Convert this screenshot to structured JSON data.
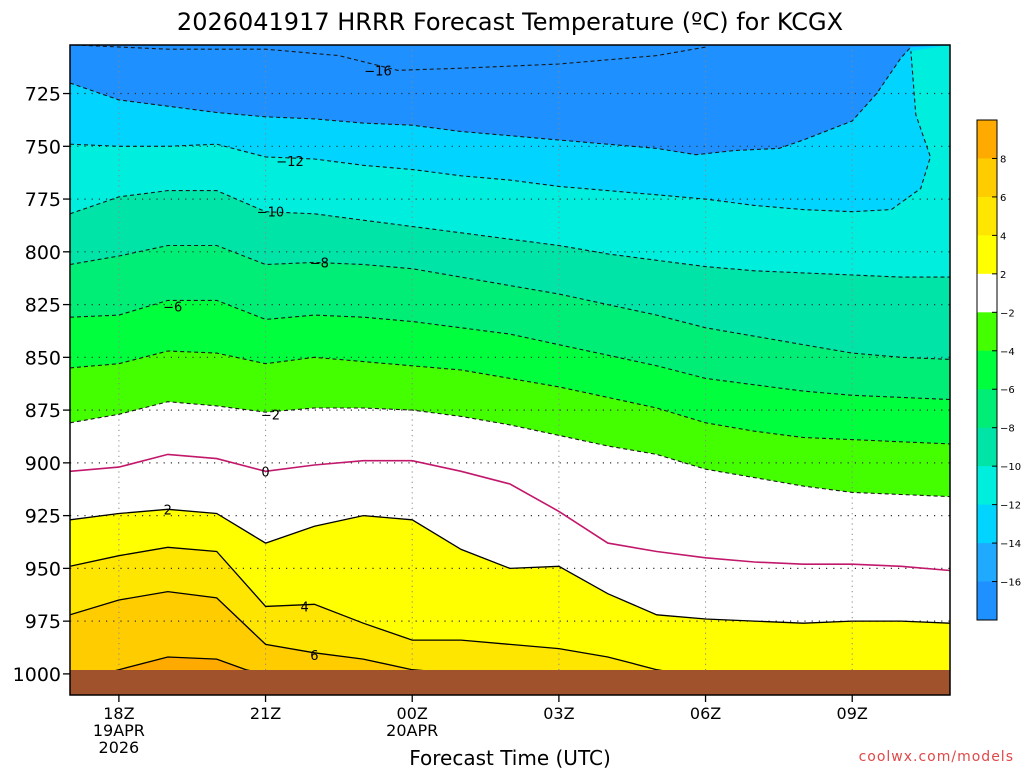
{
  "chart_data": {
    "type": "filled-contour",
    "title": "2026041917 HRRR Forecast Temperature (ºC) for KCGX",
    "xlabel": "Forecast Time (UTC)",
    "ylabel": "",
    "watermark": "coolwx.com/models",
    "x_ticks": [
      {
        "hour": 1,
        "lines": [
          "18Z",
          "19APR",
          "2026"
        ]
      },
      {
        "hour": 4,
        "lines": [
          "21Z"
        ]
      },
      {
        "hour": 7,
        "lines": [
          "00Z",
          "20APR"
        ]
      },
      {
        "hour": 10,
        "lines": [
          "03Z"
        ]
      },
      {
        "hour": 13,
        "lines": [
          "06Z"
        ]
      },
      {
        "hour": 16,
        "lines": [
          "09Z"
        ]
      }
    ],
    "xlim_hours": [
      0,
      18
    ],
    "y_ticks": [
      725,
      750,
      775,
      800,
      825,
      850,
      875,
      900,
      925,
      950,
      975,
      1000
    ],
    "ylim_hpa": [
      1010,
      702
    ],
    "y_axis_inverted": true,
    "grid": "dotted",
    "ground_color": "#A0522D",
    "colorbar": {
      "bins": [
        {
          "from": -18,
          "to": -16,
          "color": "#1E90FF"
        },
        {
          "from": -16,
          "to": -14,
          "color": "#1FAAFF"
        },
        {
          "from": -14,
          "to": -12,
          "color": "#00D4FF"
        },
        {
          "from": -12,
          "to": -10,
          "color": "#00EEDD"
        },
        {
          "from": -10,
          "to": -8,
          "color": "#00E4A8"
        },
        {
          "from": -8,
          "to": -6,
          "color": "#00EE76"
        },
        {
          "from": -6,
          "to": -4,
          "color": "#00FF3C"
        },
        {
          "from": -4,
          "to": -2,
          "color": "#44FF00"
        },
        {
          "from": -2,
          "to": 2,
          "color": "#FFFFFF"
        },
        {
          "from": 2,
          "to": 4,
          "color": "#FFFF00"
        },
        {
          "from": 4,
          "to": 6,
          "color": "#FFE600"
        },
        {
          "from": 6,
          "to": 8,
          "color": "#FFCC00"
        },
        {
          "from": 8,
          "to": 10,
          "color": "#FFAA00"
        }
      ],
      "tick_labels": [
        "8",
        "6",
        "4",
        "2",
        "−2",
        "−4",
        "−6",
        "−8",
        "−10",
        "−12",
        "−14",
        "−16"
      ]
    },
    "isotherms": [
      {
        "value": -16,
        "label": "−16",
        "label_at": [
          6.3,
          714
        ],
        "style": "dashed",
        "points": [
          [
            0.1,
            702
          ],
          [
            2,
            704
          ],
          [
            4,
            704
          ],
          [
            5.5,
            707
          ],
          [
            6.7,
            714
          ],
          [
            8,
            713
          ],
          [
            10,
            711
          ],
          [
            12,
            707
          ],
          [
            13,
            703
          ]
        ]
      },
      {
        "value": -14,
        "label": "",
        "style": "dashed",
        "points": [
          [
            0,
            720
          ],
          [
            1,
            728
          ],
          [
            2,
            731
          ],
          [
            3,
            734
          ],
          [
            4,
            736
          ],
          [
            5,
            737
          ],
          [
            6,
            739
          ],
          [
            7,
            740
          ],
          [
            8,
            743
          ],
          [
            9,
            745
          ],
          [
            10,
            747
          ],
          [
            11,
            749
          ],
          [
            12,
            751
          ],
          [
            12.8,
            754
          ],
          [
            13.6,
            752
          ],
          [
            14.5,
            751
          ],
          [
            15,
            747
          ],
          [
            16,
            738
          ],
          [
            16.5,
            725
          ],
          [
            17,
            708
          ],
          [
            17.2,
            703
          ]
        ]
      },
      {
        "value": -12,
        "label": "−12",
        "label_at": [
          4.5,
          757
        ],
        "style": "dashed",
        "points": [
          [
            0,
            749
          ],
          [
            1,
            750
          ],
          [
            2,
            750
          ],
          [
            3,
            749
          ],
          [
            4,
            755
          ],
          [
            5,
            756
          ],
          [
            6,
            759
          ],
          [
            7,
            761
          ],
          [
            8,
            764
          ],
          [
            9,
            766
          ],
          [
            10,
            769
          ],
          [
            11,
            771
          ],
          [
            12,
            773
          ],
          [
            13,
            775
          ],
          [
            14,
            778
          ],
          [
            15,
            780
          ],
          [
            16,
            781
          ],
          [
            16.8,
            780
          ],
          [
            17.4,
            770
          ],
          [
            17.6,
            755
          ],
          [
            17.3,
            735
          ],
          [
            17.2,
            705
          ]
        ]
      },
      {
        "value": -10,
        "label": "−10",
        "label_at": [
          4.1,
          781
        ],
        "style": "dashed",
        "points": [
          [
            0,
            782
          ],
          [
            1,
            774
          ],
          [
            2,
            771
          ],
          [
            3,
            771
          ],
          [
            4,
            781
          ],
          [
            5,
            782
          ],
          [
            6,
            785
          ],
          [
            7,
            788
          ],
          [
            8,
            791
          ],
          [
            9,
            794
          ],
          [
            10,
            797
          ],
          [
            11,
            801
          ],
          [
            12,
            804
          ],
          [
            13,
            807
          ],
          [
            14,
            809
          ],
          [
            15,
            810
          ],
          [
            16,
            811
          ],
          [
            17,
            812
          ],
          [
            18,
            812
          ]
        ]
      },
      {
        "value": -8,
        "label": "−8",
        "label_at": [
          5.1,
          805
        ],
        "style": "dashed",
        "points": [
          [
            0,
            806
          ],
          [
            1,
            802
          ],
          [
            2,
            797
          ],
          [
            3,
            797
          ],
          [
            4,
            806
          ],
          [
            5,
            805
          ],
          [
            6,
            806
          ],
          [
            7,
            808
          ],
          [
            8,
            812
          ],
          [
            9,
            816
          ],
          [
            10,
            820
          ],
          [
            11,
            825
          ],
          [
            12,
            830
          ],
          [
            13,
            836
          ],
          [
            14,
            840
          ],
          [
            15,
            844
          ],
          [
            16,
            848
          ],
          [
            17,
            850
          ],
          [
            18,
            851
          ]
        ]
      },
      {
        "value": -6,
        "label": "−6",
        "label_at": [
          2.1,
          826
        ],
        "style": "dashed",
        "points": [
          [
            0,
            831
          ],
          [
            1,
            830
          ],
          [
            2,
            823
          ],
          [
            3,
            823
          ],
          [
            4,
            832
          ],
          [
            5,
            830
          ],
          [
            6,
            831
          ],
          [
            7,
            833
          ],
          [
            8,
            836
          ],
          [
            9,
            839
          ],
          [
            10,
            844
          ],
          [
            11,
            849
          ],
          [
            12,
            854
          ],
          [
            13,
            860
          ],
          [
            14,
            863
          ],
          [
            15,
            866
          ],
          [
            16,
            868
          ],
          [
            17,
            869
          ],
          [
            18,
            870
          ]
        ]
      },
      {
        "value": -4,
        "label": "",
        "style": "dashed",
        "points": [
          [
            0,
            855
          ],
          [
            1,
            853
          ],
          [
            2,
            847
          ],
          [
            3,
            848
          ],
          [
            4,
            853
          ],
          [
            5,
            850
          ],
          [
            6,
            852
          ],
          [
            7,
            854
          ],
          [
            8,
            856
          ],
          [
            9,
            860
          ],
          [
            10,
            864
          ],
          [
            11,
            869
          ],
          [
            12,
            874
          ],
          [
            13,
            881
          ],
          [
            14,
            885
          ],
          [
            15,
            888
          ],
          [
            16,
            889
          ],
          [
            17,
            890
          ],
          [
            18,
            891
          ]
        ]
      },
      {
        "value": -2,
        "label": "−2",
        "label_at": [
          4.1,
          877
        ],
        "style": "dashed",
        "points": [
          [
            0,
            881
          ],
          [
            1,
            877
          ],
          [
            2,
            871
          ],
          [
            3,
            873
          ],
          [
            4,
            876
          ],
          [
            5,
            874
          ],
          [
            6,
            874
          ],
          [
            7,
            875
          ],
          [
            8,
            878
          ],
          [
            9,
            882
          ],
          [
            10,
            887
          ],
          [
            11,
            892
          ],
          [
            12,
            896
          ],
          [
            13,
            903
          ],
          [
            14,
            907
          ],
          [
            15,
            911
          ],
          [
            16,
            914
          ],
          [
            17,
            915
          ],
          [
            18,
            916
          ]
        ]
      },
      {
        "value": 0,
        "label": "0",
        "label_at": [
          4.0,
          904
        ],
        "style": "solid-magenta",
        "points": [
          [
            0,
            904
          ],
          [
            1,
            902
          ],
          [
            2,
            896
          ],
          [
            3,
            898
          ],
          [
            4,
            904
          ],
          [
            5,
            901
          ],
          [
            6,
            899
          ],
          [
            7,
            899
          ],
          [
            8,
            904
          ],
          [
            9,
            910
          ],
          [
            10,
            923
          ],
          [
            11,
            938
          ],
          [
            12,
            942
          ],
          [
            13,
            945
          ],
          [
            14,
            947
          ],
          [
            15,
            948
          ],
          [
            16,
            948
          ],
          [
            17,
            949
          ],
          [
            18,
            951
          ]
        ]
      },
      {
        "value": 2,
        "label": "2",
        "label_at": [
          2.0,
          922
        ],
        "style": "solid",
        "points": [
          [
            0,
            927
          ],
          [
            1,
            924
          ],
          [
            2,
            922
          ],
          [
            3,
            924
          ],
          [
            4,
            938
          ],
          [
            5,
            930
          ],
          [
            6,
            925
          ],
          [
            7,
            927
          ],
          [
            8,
            941
          ],
          [
            9,
            950
          ],
          [
            10,
            949
          ],
          [
            11,
            962
          ],
          [
            12,
            972
          ],
          [
            13,
            974
          ],
          [
            14,
            975
          ],
          [
            15,
            976
          ],
          [
            16,
            975
          ],
          [
            17,
            975
          ],
          [
            18,
            976
          ]
        ]
      },
      {
        "value": 4,
        "label": "4",
        "label_at": [
          4.8,
          968
        ],
        "style": "solid",
        "points": [
          [
            0,
            949
          ],
          [
            1,
            944
          ],
          [
            2,
            940
          ],
          [
            3,
            942
          ],
          [
            4,
            968
          ],
          [
            5,
            967
          ],
          [
            6,
            976
          ],
          [
            7,
            984
          ],
          [
            8,
            984
          ],
          [
            9,
            986
          ],
          [
            10,
            988
          ],
          [
            11,
            992
          ],
          [
            11.5,
            995
          ],
          [
            12,
            998
          ],
          [
            12.5,
            1000
          ],
          [
            12.2,
            1002
          ],
          [
            11.5,
            1003
          ],
          [
            10.5,
            1003
          ]
        ]
      },
      {
        "value": 6,
        "label": "6",
        "label_at": [
          5.0,
          991
        ],
        "style": "solid",
        "points": [
          [
            0,
            972
          ],
          [
            1,
            965
          ],
          [
            2,
            961
          ],
          [
            3,
            964
          ],
          [
            4,
            986
          ],
          [
            5,
            990
          ],
          [
            6,
            993
          ],
          [
            7,
            998
          ],
          [
            8,
            1000
          ],
          [
            8.5,
            1001
          ]
        ]
      },
      {
        "value": 8,
        "label": "",
        "style": "solid",
        "points": [
          [
            0.3,
            1002
          ],
          [
            1,
            998
          ],
          [
            2,
            992
          ],
          [
            3,
            993
          ],
          [
            3.6,
            998
          ],
          [
            4,
            1000
          ],
          [
            4.3,
            1001
          ]
        ]
      },
      {
        "value": 2,
        "label": "",
        "style": "solid",
        "points": [
          [
            14.8,
            1000
          ],
          [
            15.3,
            999
          ],
          [
            15.6,
            1000
          ],
          [
            15.1,
            1001
          ],
          [
            14.8,
            1000
          ]
        ]
      }
    ]
  }
}
